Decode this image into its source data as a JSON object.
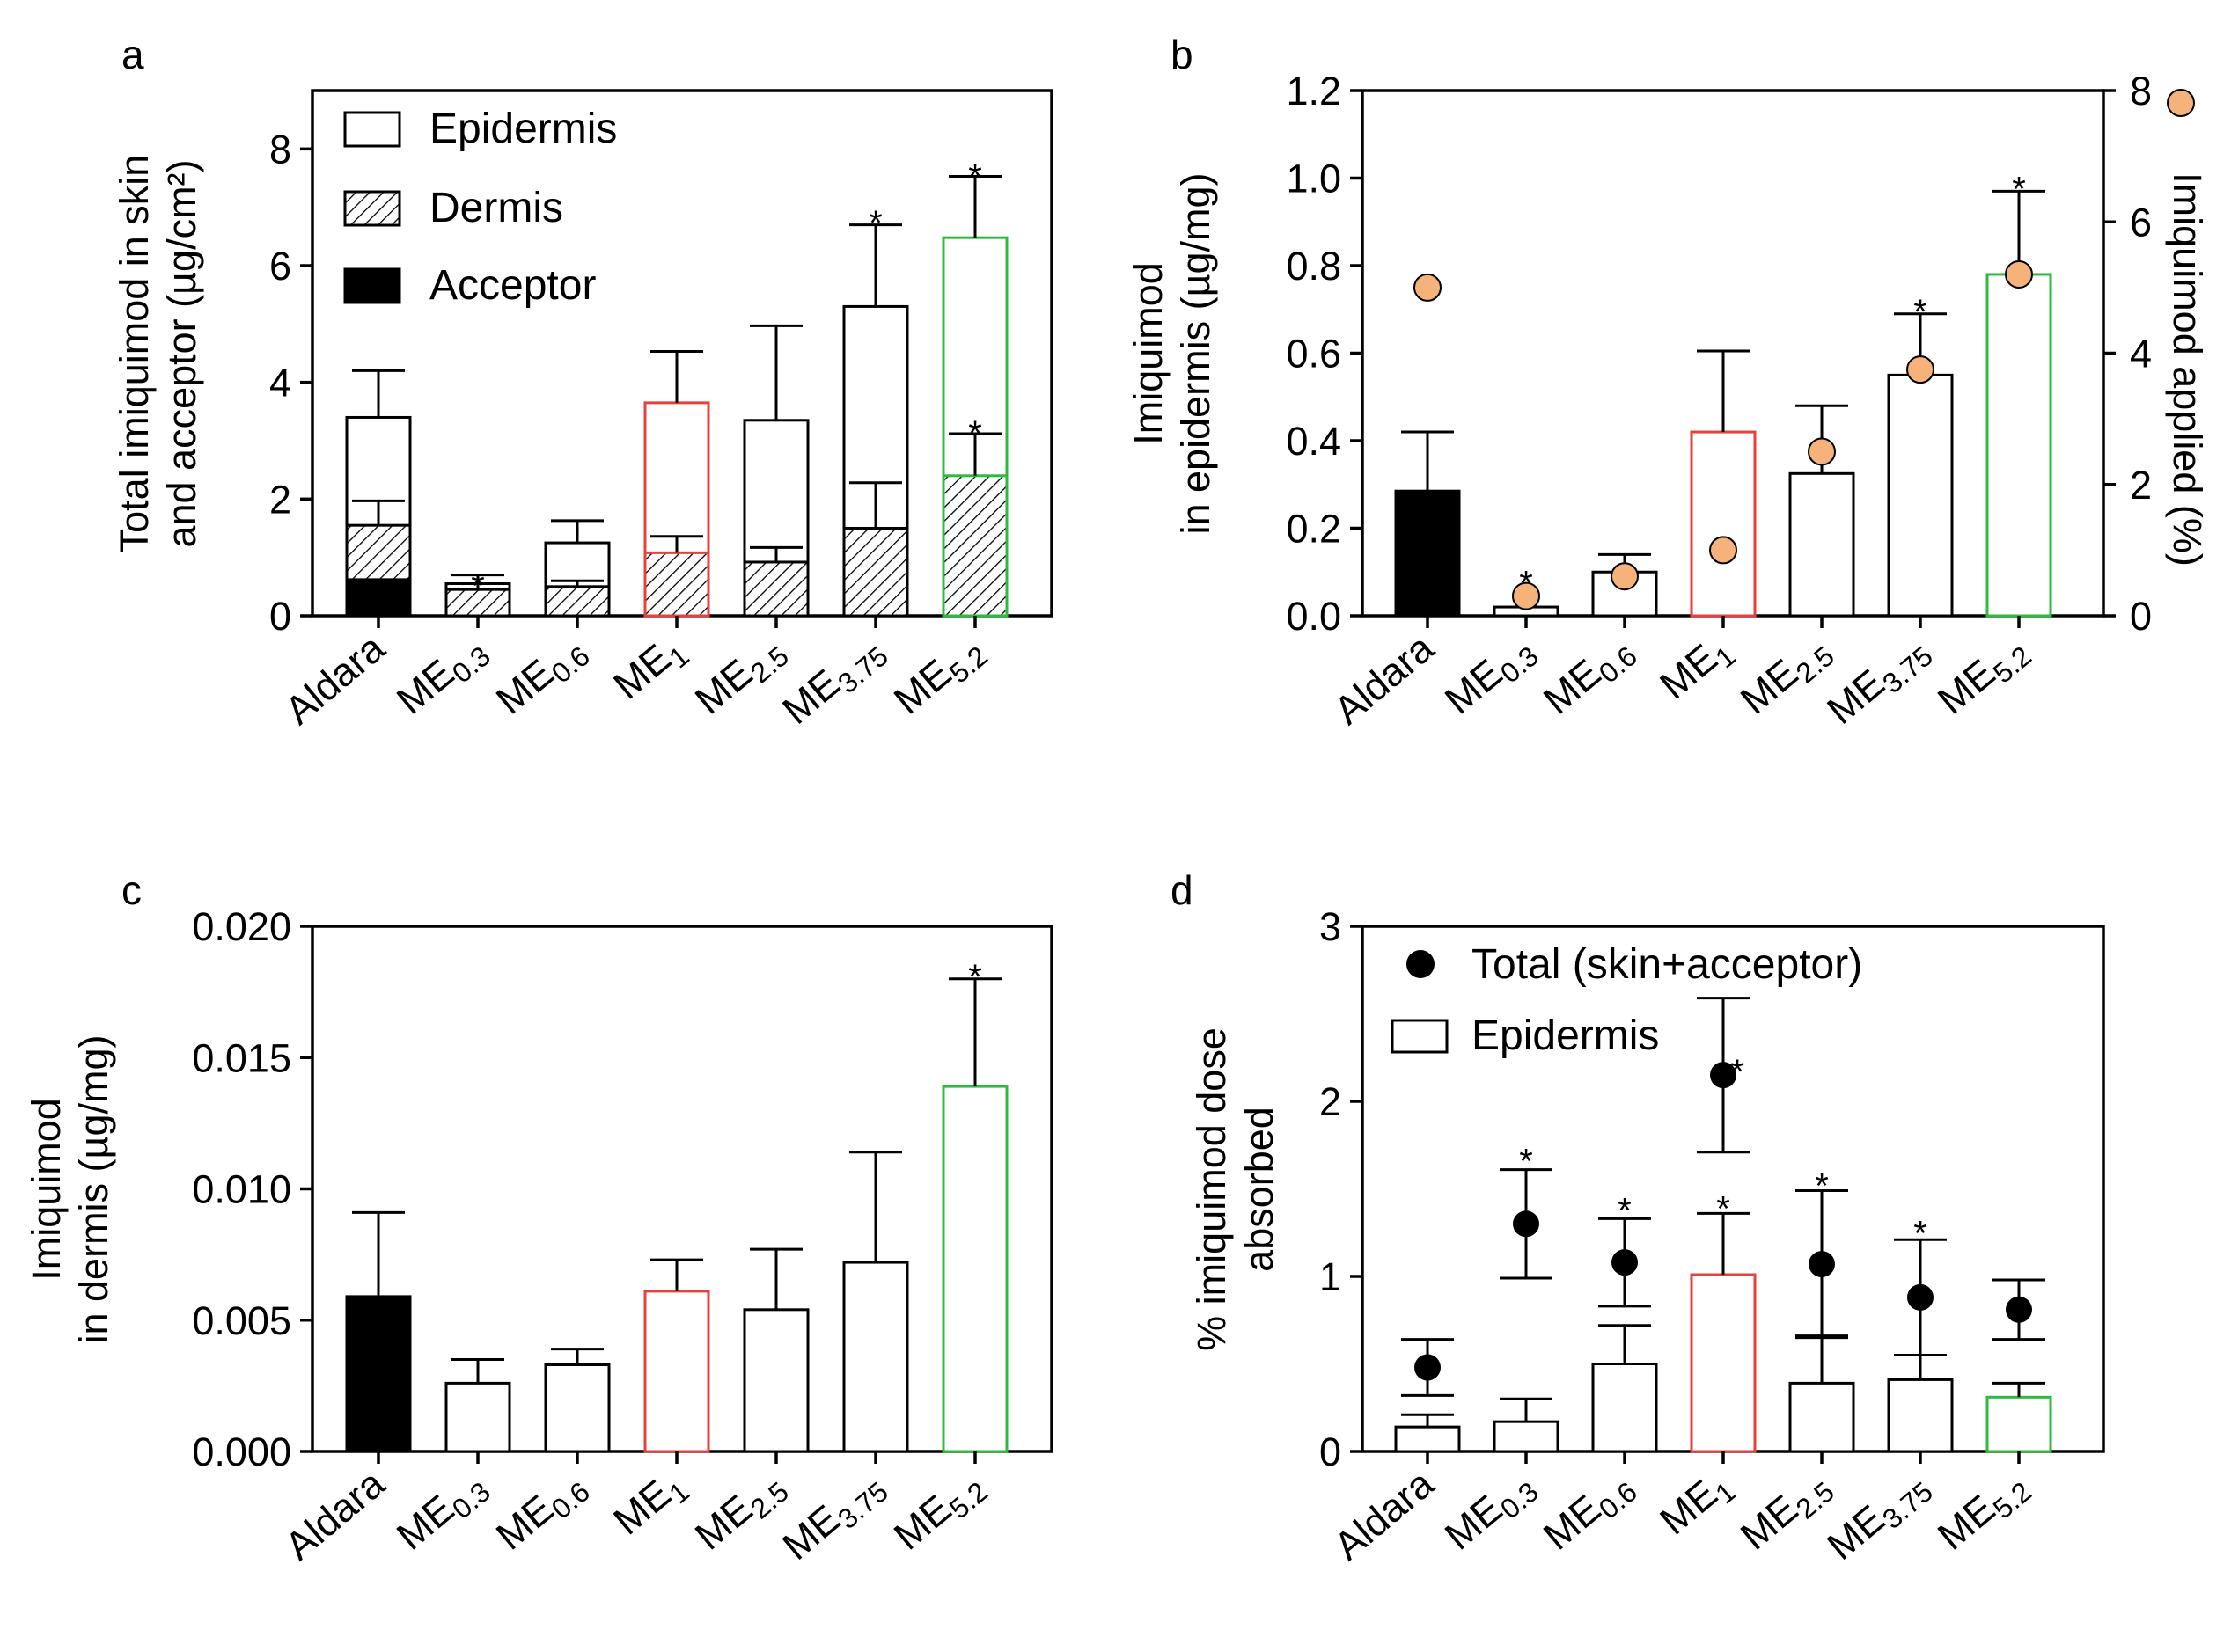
{
  "colors": {
    "axis": "#000000",
    "bar_default": "#ffffff",
    "acceptor": "#000000",
    "me1": "#e8403c",
    "me52": "#2dbb3c",
    "marker": "#f5b27a",
    "dot": "#000000"
  },
  "categories": [
    {
      "base": "Aldara",
      "sub": ""
    },
    {
      "base": "ME",
      "sub": "0.3"
    },
    {
      "base": "ME",
      "sub": "0.6"
    },
    {
      "base": "ME",
      "sub": "1"
    },
    {
      "base": "ME",
      "sub": "2.5"
    },
    {
      "base": "ME",
      "sub": "3.75"
    },
    {
      "base": "ME",
      "sub": "5.2"
    }
  ],
  "chart_data": [
    {
      "panel": "a",
      "type": "bar",
      "stacked": true,
      "ylabel_lines": [
        "Total imiquimod in skin",
        "and acceptor (µg/cm²)"
      ],
      "ylim": [
        0,
        9
      ],
      "yticks": [
        "0",
        "2",
        "4",
        "6",
        "8"
      ],
      "legend": [
        "Epidermis",
        "Dermis",
        "Acceptor"
      ],
      "series": [
        {
          "name": "Acceptor",
          "values": [
            0.62,
            0.0,
            0.0,
            0.0,
            0.0,
            0.0,
            0.0
          ]
        },
        {
          "name": "Dermis",
          "values": [
            1.55,
            0.45,
            0.5,
            1.08,
            0.92,
            1.5,
            2.4
          ],
          "err": [
            0.42,
            0.1,
            0.1,
            0.28,
            0.25,
            0.78,
            0.72
          ]
        },
        {
          "name": "Epidermis",
          "values": [
            3.4,
            0.55,
            1.25,
            3.65,
            3.35,
            5.3,
            6.48
          ],
          "err": [
            0.8,
            0.15,
            0.38,
            0.88,
            1.62,
            1.4,
            1.05
          ]
        }
      ],
      "significance": [
        {
          "category": 1,
          "label": "*",
          "at": 0.7
        },
        {
          "category": 5,
          "label": "*",
          "at": 6.92
        },
        {
          "category": 6,
          "label": "*",
          "at": 7.72
        },
        {
          "category": 6,
          "label": "*",
          "at": 3.32
        }
      ]
    },
    {
      "panel": "b",
      "type": "bar",
      "ylabel_lines": [
        "Imiquimod",
        "in epidermis (µg/mg)"
      ],
      "ylim": [
        0,
        1.2
      ],
      "yticks": [
        "0.0",
        "0.2",
        "0.4",
        "0.6",
        "0.8",
        "1.0",
        "1.2"
      ],
      "values": [
        0.285,
        0.02,
        0.1,
        0.42,
        0.325,
        0.55,
        0.78
      ],
      "err": [
        0.135,
        0.0,
        0.04,
        0.185,
        0.155,
        0.14,
        0.19
      ],
      "secondary": {
        "label": "Imiquimod applied (%)",
        "ylim": [
          0,
          8
        ],
        "yticks": [
          "0",
          "2",
          "4",
          "6",
          "8"
        ],
        "values": [
          5.0,
          0.3,
          0.6,
          1.0,
          2.5,
          3.75,
          5.2
        ]
      },
      "significance": [
        {
          "category": 1,
          "label": "*",
          "at": 0.1
        },
        {
          "category": 5,
          "label": "*",
          "at": 0.72
        },
        {
          "category": 6,
          "label": "*",
          "at": 1.0
        }
      ]
    },
    {
      "panel": "c",
      "type": "bar",
      "ylabel_lines": [
        "Imiquimod",
        "in dermis (µg/mg)"
      ],
      "ylim": [
        0,
        0.02
      ],
      "yticks": [
        "0.000",
        "0.005",
        "0.010",
        "0.015",
        "0.020"
      ],
      "values": [
        0.0059,
        0.0026,
        0.0033,
        0.0061,
        0.0054,
        0.0072,
        0.0139
      ],
      "err": [
        0.0032,
        0.0009,
        0.0006,
        0.0012,
        0.0023,
        0.0042,
        0.0041
      ],
      "significance": [
        {
          "category": 6,
          "label": "*",
          "at": 0.0185
        }
      ]
    },
    {
      "panel": "d",
      "type": "bar+scatter",
      "ylabel_lines": [
        "% imiquimod dose",
        "absorbed"
      ],
      "ylim": [
        0,
        3
      ],
      "yticks": [
        "0",
        "1",
        "2",
        "3"
      ],
      "legend": [
        "Total (skin+acceptor)",
        "Epidermis"
      ],
      "epidermis": {
        "values": [
          0.14,
          0.17,
          0.5,
          1.01,
          0.39,
          0.41,
          0.31
        ],
        "err": [
          0.07,
          0.13,
          0.22,
          0.35,
          0.27,
          0.14,
          0.08
        ]
      },
      "total": {
        "values": [
          0.48,
          1.3,
          1.08,
          2.15,
          1.07,
          0.88,
          0.81
        ],
        "err": [
          0.16,
          0.31,
          0.25,
          0.44,
          0.42,
          0.33,
          0.17
        ]
      },
      "significance": [
        {
          "category": 1,
          "label": "*",
          "at": 1.72
        },
        {
          "category": 2,
          "label": "*",
          "at": 1.44
        },
        {
          "category": 3,
          "label": "*",
          "at": 2.23
        },
        {
          "category": 3,
          "label": "*",
          "at": 1.45
        },
        {
          "category": 4,
          "label": "*",
          "at": 1.58
        },
        {
          "category": 5,
          "label": "*",
          "at": 1.31
        }
      ]
    }
  ],
  "panels": {
    "a": "a",
    "b": "b",
    "c": "c",
    "d": "d"
  }
}
